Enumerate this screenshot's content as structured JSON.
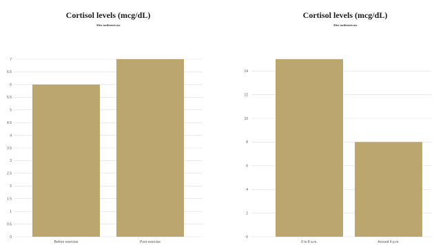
{
  "chart_data": [
    {
      "type": "bar",
      "title": "Cortisol levels  (mcg/dL)",
      "subtitle": "After metformin use",
      "categories": [
        "Before exercise",
        "Post exercise"
      ],
      "values": [
        6,
        7
      ],
      "ylim": [
        0,
        7
      ],
      "yticks": [
        0,
        0.5,
        1,
        1.5,
        2,
        2.5,
        3,
        3.5,
        4,
        4.5,
        5,
        5.5,
        6,
        6.5,
        7
      ],
      "yticks_text": [
        "0",
        "0.5",
        "1",
        "1.5",
        "2",
        "2.5",
        "3",
        "3.5",
        "4",
        "4.5",
        "5",
        "5.5",
        "6",
        "6.5",
        "7"
      ],
      "grid": true,
      "legend": "none",
      "bar_color": "#bba66f"
    },
    {
      "type": "bar",
      "title": "Cortisol levels  (mcg/dL)",
      "subtitle": "After metformin use",
      "categories": [
        "6 to 8 a.m.",
        "Around 4 p.m."
      ],
      "values": [
        15,
        8
      ],
      "ylim": [
        0,
        15
      ],
      "yticks": [
        0,
        2,
        4,
        6,
        8,
        10,
        12,
        14
      ],
      "yticks_text": [
        "0",
        "2",
        "4",
        "6",
        "8",
        "10",
        "12",
        "14"
      ],
      "grid": true,
      "legend": "none",
      "bar_color": "#bba66f"
    }
  ]
}
